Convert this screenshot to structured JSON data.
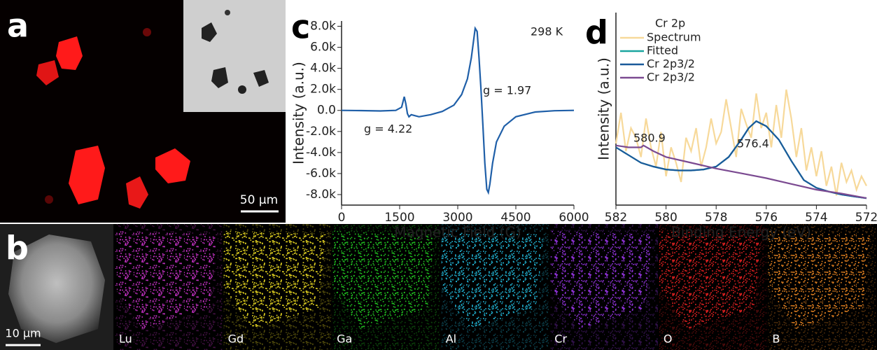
{
  "panel_a": {
    "label": "a",
    "scale_bar": "50 μm"
  },
  "panel_b": {
    "label": "b",
    "scale_bar": "10 μm",
    "maps": [
      "Lu",
      "Gd",
      "Ga",
      "Al",
      "Cr",
      "O",
      "B"
    ]
  },
  "chart_data": [
    {
      "type": "line",
      "panel": "c",
      "xlabel": "Magnetic Field (G)",
      "ylabel": "Intensity (a.u.)",
      "annotations": [
        "298 K",
        "g = 1.97",
        "g = 4.22"
      ],
      "xlim": [
        0,
        6000
      ],
      "xticks": [
        0,
        1500,
        3000,
        4500,
        6000
      ],
      "ylim": [
        -9000,
        8500
      ],
      "yticks": [
        {
          "value": -8000,
          "label": "-8.0k"
        },
        {
          "value": -6000,
          "label": "-6.0k"
        },
        {
          "value": -4000,
          "label": "-4.0k"
        },
        {
          "value": -2000,
          "label": "-2.0k"
        },
        {
          "value": 0,
          "label": "0.0"
        },
        {
          "value": 2000,
          "label": "2.0k"
        },
        {
          "value": 4000,
          "label": "4.0k"
        },
        {
          "value": 6000,
          "label": "6.0k"
        },
        {
          "value": 8000,
          "label": "8.0k"
        }
      ],
      "series": [
        {
          "color": "#1f5fa8",
          "x": [
            0,
            500,
            1000,
            1400,
            1550,
            1620,
            1660,
            1700,
            1740,
            1800,
            1900,
            2000,
            2300,
            2600,
            2900,
            3100,
            3250,
            3350,
            3450,
            3500,
            3550,
            3600,
            3650,
            3700,
            3750,
            3790,
            3830,
            3900,
            4000,
            4200,
            4500,
            5000,
            5500,
            6000
          ],
          "values": [
            0,
            -20,
            -50,
            0,
            300,
            1300,
            600,
            -300,
            -600,
            -400,
            -500,
            -600,
            -400,
            -100,
            500,
            1500,
            3000,
            5000,
            7800,
            7500,
            5000,
            2000,
            -1500,
            -5000,
            -7500,
            -7800,
            -7000,
            -5000,
            -3000,
            -1500,
            -600,
            -150,
            -30,
            0
          ]
        }
      ]
    },
    {
      "type": "line",
      "panel": "d",
      "xlabel": "Binding Energy (eV)",
      "ylabel": "Intensity (a.u.)",
      "legend_title": "Cr 2p",
      "annotations": [
        "580.9",
        "576.4"
      ],
      "xlim": [
        582,
        572
      ],
      "xticks": [
        582,
        580,
        578,
        576,
        574,
        572
      ],
      "ylim": [
        0,
        100
      ],
      "series": [
        {
          "name": "Spectrum",
          "color": "#f7d99a",
          "x": [
            582,
            581.8,
            581.6,
            581.4,
            581.2,
            581,
            580.8,
            580.6,
            580.4,
            580.2,
            580,
            579.8,
            579.6,
            579.4,
            579.2,
            579,
            578.8,
            578.6,
            578.4,
            578.2,
            578,
            577.8,
            577.6,
            577.4,
            577.2,
            577,
            576.8,
            576.6,
            576.4,
            576.2,
            576,
            575.8,
            575.6,
            575.4,
            575.2,
            575,
            574.8,
            574.6,
            574.4,
            574.2,
            574,
            573.8,
            573.6,
            573.4,
            573.2,
            573,
            572.8,
            572.6,
            572.4,
            572.2,
            572
          ],
          "values": [
            32,
            48,
            28,
            40,
            35,
            25,
            45,
            30,
            20,
            38,
            15,
            30,
            22,
            12,
            35,
            28,
            40,
            20,
            30,
            45,
            32,
            38,
            55,
            40,
            25,
            50,
            42,
            35,
            58,
            40,
            48,
            30,
            52,
            35,
            60,
            45,
            25,
            40,
            18,
            30,
            15,
            28,
            10,
            20,
            5,
            22,
            12,
            18,
            8,
            15,
            10
          ]
        },
        {
          "name": "Fitted",
          "color": "#1aa5a0",
          "x": [
            582,
            581.5,
            581,
            580.5,
            580,
            579.5,
            579,
            578.5,
            578,
            577.5,
            577,
            576.7,
            576.4,
            576,
            575.5,
            575,
            574.5,
            574,
            573.5,
            573,
            572.5,
            572
          ],
          "values": [
            30,
            26,
            22,
            20,
            18.5,
            18,
            18,
            18.5,
            20,
            25,
            34,
            40,
            43.6,
            41,
            34,
            23,
            13,
            9,
            7,
            5.5,
            4.5,
            3.6
          ]
        },
        {
          "name": "Cr 2p3/2",
          "color": "#1a5a9a",
          "x": [
            582,
            581.5,
            581,
            580.5,
            580,
            579.5,
            579,
            578.5,
            578,
            577.5,
            577,
            576.7,
            576.4,
            576,
            575.5,
            575,
            574.5,
            574,
            573.5,
            573,
            572.5,
            572
          ],
          "values": [
            30,
            26,
            22,
            20,
            18.5,
            18,
            18,
            18.5,
            20,
            25,
            34,
            40,
            43.6,
            41,
            34,
            23,
            13,
            9,
            7,
            5.5,
            4.5,
            3.6
          ]
        },
        {
          "name": "Cr 2p3/2",
          "color": "#7b4a91",
          "x": [
            582,
            581.5,
            581,
            580.9,
            580.5,
            580,
            579,
            578,
            577,
            576,
            575,
            574,
            573,
            572
          ],
          "values": [
            31,
            30,
            30,
            31,
            28,
            25,
            22,
            19,
            16.5,
            14,
            11,
            8,
            6,
            3.6
          ]
        }
      ]
    }
  ]
}
